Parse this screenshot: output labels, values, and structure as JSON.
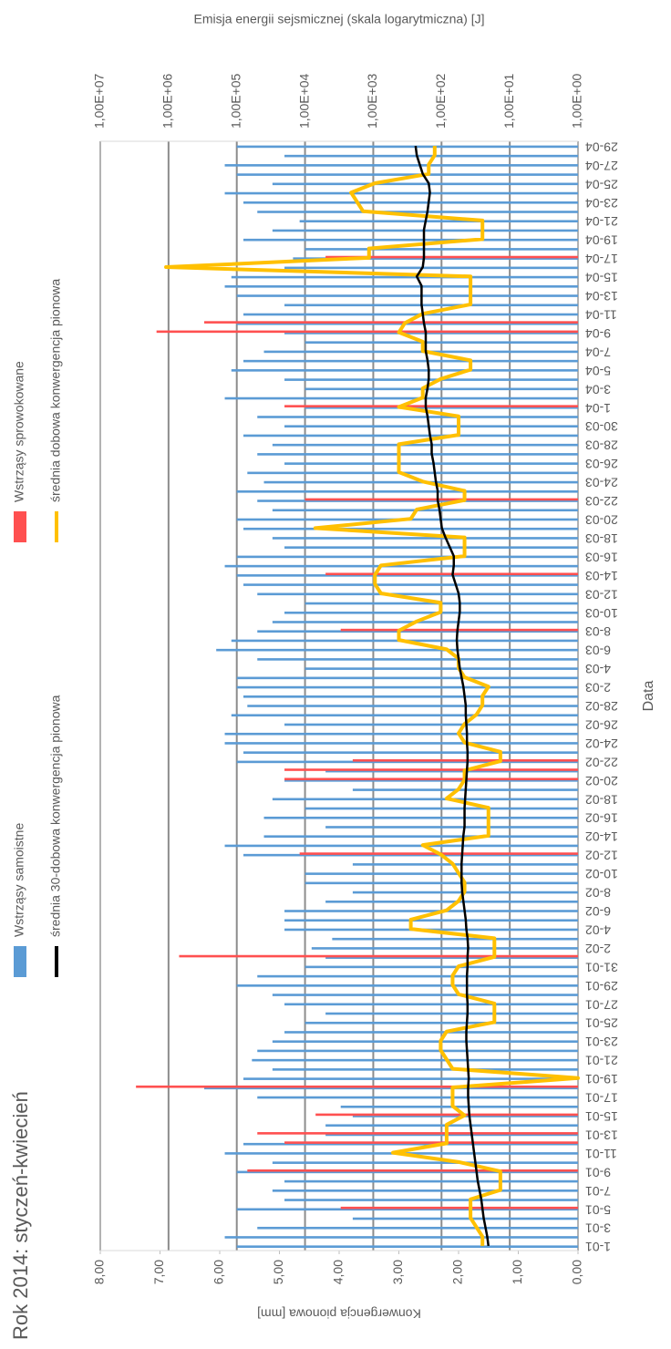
{
  "chart_data": {
    "type": "bar",
    "title": "Rok 2014: styczeń-kwiecień",
    "xlabel": "Data",
    "ylabel": "Konwergencja pionowa [mm]",
    "y2label": "Emisja energii sejsmicznej (skala logarytmiczna) [J]",
    "categories": [
      "1-01",
      null,
      "3-01",
      null,
      "5-01",
      null,
      "7-01",
      null,
      "9-01",
      null,
      "11-01",
      null,
      "13-01",
      null,
      "15-01",
      null,
      "17-01",
      null,
      "19-01",
      null,
      "21-01",
      null,
      "23-01",
      null,
      "25-01",
      null,
      "27-01",
      null,
      "29-01",
      null,
      "31-01",
      null,
      "2-02",
      null,
      "4-02",
      null,
      "6-02",
      null,
      "8-02",
      null,
      "10-02",
      null,
      "12-02",
      null,
      "14-02",
      null,
      "16-02",
      null,
      "18-02",
      null,
      "20-02",
      null,
      "22-02",
      null,
      "24-02",
      null,
      "26-02",
      null,
      "28-02",
      null,
      "2-03",
      null,
      "4-03",
      null,
      "6-03",
      null,
      "8-03",
      null,
      "10-03",
      null,
      "12-03",
      null,
      "14-03",
      null,
      "16-03",
      null,
      "18-03",
      null,
      "20-03",
      null,
      "22-03",
      null,
      "24-03",
      null,
      "26-03",
      null,
      "28-03",
      null,
      "30-03",
      null,
      "1-04",
      null,
      "3-04",
      null,
      "5-04",
      null,
      "7-04",
      null,
      "9-04",
      null,
      "11-04",
      null,
      "13-04",
      null,
      "15-04",
      null,
      "17-04",
      null,
      "19-04",
      null,
      "21-04",
      null,
      "23-04",
      null,
      "25-04",
      null,
      "27-04",
      null,
      "29-04"
    ],
    "ylim": [
      0,
      8
    ],
    "yticks": [
      {
        "value": 0,
        "label": "0,00"
      },
      {
        "value": 1,
        "label": "1,00"
      },
      {
        "value": 2,
        "label": "2,00"
      },
      {
        "value": 3,
        "label": "3,00"
      },
      {
        "value": 4,
        "label": "4,00"
      },
      {
        "value": 5,
        "label": "5,00"
      },
      {
        "value": 6,
        "label": "6,00"
      },
      {
        "value": 7,
        "label": "7,00"
      },
      {
        "value": 8,
        "label": "8,00"
      }
    ],
    "y2lim": [
      1,
      10000000
    ],
    "y2log": true,
    "y2grid": true,
    "y2ticks": [
      {
        "value": 1,
        "label": "1,00E+00"
      },
      {
        "value": 10,
        "label": "1,00E+01"
      },
      {
        "value": 100,
        "label": "1,00E+02"
      },
      {
        "value": 1000,
        "label": "1,00E+03"
      },
      {
        "value": 10000,
        "label": "1,00E+04"
      },
      {
        "value": 100000,
        "label": "1,00E+05"
      },
      {
        "value": 1000000,
        "label": "1,00E+06"
      },
      {
        "value": 10000000,
        "label": "1,00E+07"
      }
    ],
    "series": [
      {
        "name": "Wstrząsy samoistne",
        "type": "bar",
        "axis": "y2",
        "color": "#5b9bd5",
        "values": [
          100000.0,
          150000.0,
          50000.0,
          2000.0,
          100000.0,
          20000.0,
          30000.0,
          20000.0,
          100000.0,
          30000.0,
          150000.0,
          80000.0,
          5000.0,
          5000.0,
          2000.0,
          3000.0,
          50000.0,
          300000.0,
          80000.0,
          30000.0,
          60000.0,
          50000.0,
          30000.0,
          20000.0,
          10000.0,
          5000.0,
          20000.0,
          30000.0,
          100000.0,
          50000.0,
          10000.0,
          5000.0,
          8000.0,
          4000.0,
          20000.0,
          20000.0,
          20000.0,
          5000.0,
          2000.0,
          10000.0,
          10000.0,
          2000.0,
          80000.0,
          150000.0,
          40000.0,
          5000.0,
          40000.0,
          10000.0,
          30000.0,
          2000.0,
          20000.0,
          5000.0,
          100000.0,
          80000.0,
          150000.0,
          150000.0,
          20000.0,
          120000.0,
          70000.0,
          80000.0,
          100000.0,
          100000.0,
          10000.0,
          50000.0,
          200000.0,
          120000.0,
          50000.0,
          30000.0,
          20000.0,
          10000.0,
          50000.0,
          80000.0,
          100000.0,
          150000.0,
          100000.0,
          20000.0,
          30000.0,
          80000.0,
          100000.0,
          30000.0,
          50000.0,
          100000.0,
          40000.0,
          70000.0,
          20000.0,
          50000.0,
          30000.0,
          80000.0,
          20000.0,
          50000.0,
          10000.0,
          150000.0,
          10000.0,
          20000.0,
          120000.0,
          80000.0,
          40000.0,
          10000.0,
          20000.0,
          100000.0,
          80000.0,
          20000.0,
          100000.0,
          150000.0,
          120000.0,
          20000.0,
          15000.0,
          10000.0,
          80000.0,
          30000.0,
          12000.0,
          50000.0,
          80000.0,
          150000.0,
          30000.0,
          100000.0,
          150000.0,
          20000.0,
          100000.0
        ]
      },
      {
        "name": "Wstrząsy sprowokowane",
        "type": "bar",
        "axis": "y2",
        "color": "#ff5050",
        "values": [
          null,
          null,
          null,
          null,
          3000.0,
          null,
          null,
          null,
          70000.0,
          null,
          null,
          20000.0,
          50000.0,
          null,
          7000.0,
          null,
          null,
          3000000.0,
          null,
          null,
          null,
          null,
          null,
          null,
          null,
          null,
          null,
          null,
          null,
          null,
          null,
          700000.0,
          null,
          null,
          null,
          null,
          null,
          null,
          null,
          null,
          null,
          null,
          12000.0,
          null,
          null,
          null,
          null,
          null,
          null,
          null,
          20000.0,
          20000.0,
          2000.0,
          null,
          null,
          null,
          null,
          null,
          null,
          null,
          null,
          null,
          null,
          null,
          null,
          null,
          3000.0,
          null,
          null,
          null,
          null,
          null,
          5000.0,
          null,
          null,
          null,
          null,
          null,
          null,
          null,
          10000.0,
          null,
          null,
          null,
          null,
          null,
          null,
          null,
          null,
          null,
          20000.0,
          null,
          null,
          null,
          null,
          null,
          null,
          null,
          1500000.0,
          300000.0,
          null,
          null,
          null,
          null,
          null,
          null,
          5000.0,
          null,
          null,
          null,
          null,
          null,
          null,
          null,
          null,
          null,
          null,
          null,
          null
        ]
      },
      {
        "name": "średnia 30-dobowa konwergencja pionowa",
        "type": "line",
        "color": "#000000",
        "values": [
          1.5,
          1.52,
          1.55,
          1.58,
          1.6,
          1.62,
          1.65,
          1.68,
          1.7,
          1.72,
          1.74,
          1.76,
          1.78,
          1.8,
          1.82,
          1.83,
          1.84,
          1.84,
          1.83,
          1.84,
          1.85,
          1.86,
          1.87,
          1.87,
          1.86,
          1.85,
          1.85,
          1.86,
          1.86,
          1.86,
          1.85,
          1.85,
          1.84,
          1.85,
          1.87,
          1.88,
          1.9,
          1.92,
          1.94,
          1.95,
          1.95,
          1.95,
          1.94,
          1.93,
          1.92,
          1.9,
          1.9,
          1.9,
          1.89,
          1.88,
          1.87,
          1.86,
          1.85,
          1.85,
          1.86,
          1.86,
          1.87,
          1.88,
          1.88,
          1.9,
          1.92,
          1.95,
          1.98,
          2.0,
          2.02,
          2.03,
          2.02,
          2.0,
          1.98,
          1.98,
          2.0,
          2.05,
          2.1,
          2.08,
          2.08,
          2.15,
          2.22,
          2.28,
          2.3,
          2.32,
          2.35,
          2.35,
          2.38,
          2.4,
          2.42,
          2.45,
          2.45,
          2.48,
          2.5,
          2.52,
          2.55,
          2.55,
          2.52,
          2.5,
          2.5,
          2.52,
          2.55,
          2.55,
          2.55,
          2.58,
          2.6,
          2.62,
          2.62,
          2.62,
          2.7,
          2.6,
          2.58,
          2.58,
          2.58,
          2.58,
          2.55,
          2.52,
          2.5,
          2.48,
          2.5,
          2.6,
          2.65,
          2.7,
          2.72
        ]
      },
      {
        "name": "średnia dobowa konwergencja pionowa",
        "type": "line",
        "color": "#ffc000",
        "values": [
          1.6,
          1.6,
          1.7,
          1.8,
          1.8,
          1.8,
          1.3,
          1.3,
          1.3,
          2.0,
          3.1,
          2.2,
          2.2,
          2.2,
          1.9,
          2.1,
          2.1,
          2.1,
          0.0,
          2.1,
          2.2,
          2.3,
          2.3,
          2.2,
          1.4,
          1.4,
          1.4,
          2.0,
          2.1,
          2.1,
          2.0,
          1.4,
          1.4,
          1.4,
          2.8,
          2.8,
          2.2,
          2.0,
          1.9,
          1.9,
          2.0,
          2.1,
          2.3,
          2.6,
          1.5,
          1.5,
          1.5,
          1.5,
          2.2,
          2.0,
          1.9,
          1.9,
          1.3,
          1.3,
          1.9,
          2.0,
          1.9,
          1.7,
          1.6,
          1.6,
          1.5,
          1.9,
          2.0,
          2.0,
          2.2,
          3.0,
          3.0,
          2.7,
          2.3,
          2.3,
          3.3,
          3.4,
          3.4,
          3.3,
          1.9,
          1.9,
          1.9,
          4.4,
          2.8,
          2.7,
          1.9,
          1.9,
          2.6,
          3.0,
          3.0,
          3.0,
          3.0,
          2.0,
          2.0,
          2.0,
          3.0,
          2.6,
          2.6,
          2.3,
          1.8,
          1.8,
          2.6,
          2.6,
          3.0,
          2.9,
          2.6,
          1.8,
          1.8,
          1.8,
          1.8,
          6.9,
          3.5,
          3.5,
          1.6,
          1.6,
          1.6,
          3.6,
          3.7,
          3.8,
          3.4,
          2.5,
          2.5,
          2.4,
          2.4
        ]
      }
    ]
  }
}
